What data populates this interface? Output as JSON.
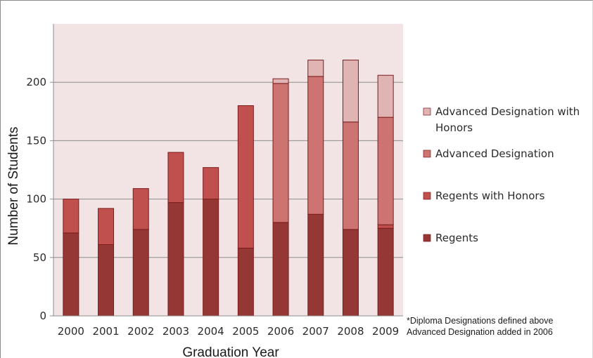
{
  "chart_data": {
    "type": "bar",
    "stacked": true,
    "title": "",
    "xlabel": "Graduation Year",
    "ylabel": "Number of Students",
    "categories": [
      "2000",
      "2001",
      "2002",
      "2003",
      "2004",
      "2005",
      "2006",
      "2007",
      "2008",
      "2009"
    ],
    "ylim": [
      0,
      250
    ],
    "yticks": [
      0,
      50,
      100,
      150,
      200
    ],
    "grid": true,
    "legend_position": "right",
    "series": [
      {
        "name": "Regents",
        "color": "#953735",
        "values": [
          71,
          61,
          74,
          97,
          100,
          58,
          80,
          87,
          74,
          75
        ]
      },
      {
        "name": "Regents with Honors",
        "color": "#c0504d",
        "values": [
          29,
          31,
          35,
          43,
          27,
          122,
          0,
          0,
          0,
          3
        ]
      },
      {
        "name": "Advanced Designation",
        "color": "#cd7372",
        "values": [
          0,
          0,
          0,
          0,
          0,
          0,
          119,
          118,
          92,
          92
        ]
      },
      {
        "name": "Advanced Designation with Honors",
        "color": "#e0b4b3",
        "values": [
          0,
          0,
          0,
          0,
          0,
          0,
          4,
          14,
          53,
          36
        ]
      }
    ],
    "legend_order": [
      "Advanced Designation with Honors",
      "Advanced Designation",
      "Regents with Honors",
      "Regents"
    ],
    "legend_labels": {
      "Advanced Designation with Honors": [
        "Advanced Designation with",
        "Honors"
      ],
      "Advanced Designation": [
        "Advanced Designation"
      ],
      "Regents with Honors": [
        "Regents with Honors"
      ],
      "Regents": [
        "Regents"
      ]
    },
    "footnote": [
      "*Diploma Designations defined above",
      "Advanced Designation added in 2006"
    ],
    "colors": {
      "plot_background": "#f2e4e4",
      "gridline": "#8c8c8c",
      "bar_outline": "#7a1c1c"
    }
  }
}
